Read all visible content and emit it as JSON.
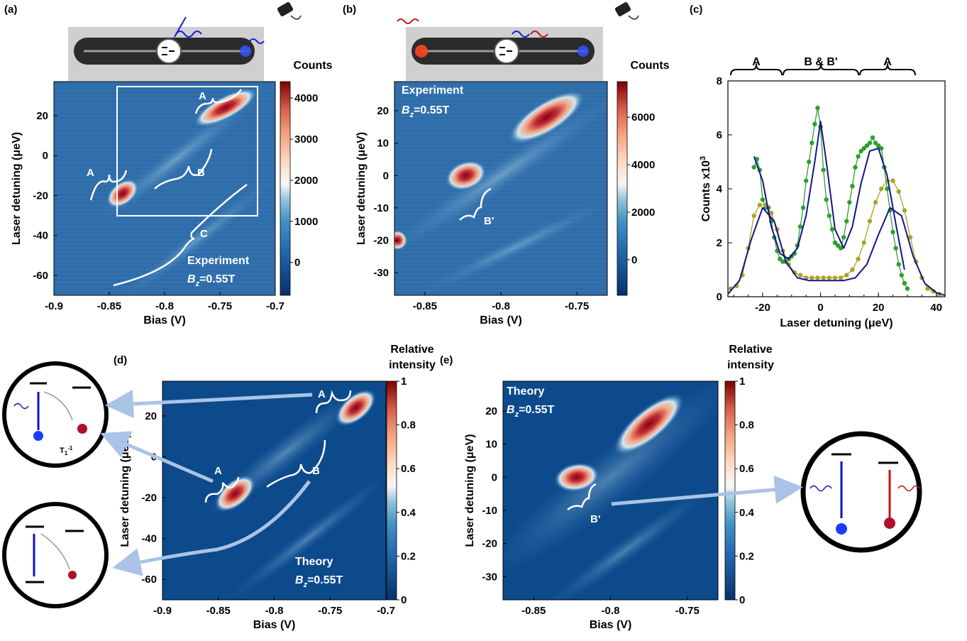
{
  "panels": {
    "a": "(a)",
    "b": "(b)",
    "c": "(c)",
    "d": "(d)",
    "e": "(e)"
  },
  "colors": {
    "dark_blue": "#08306b",
    "mid_blue": "#2c6fad",
    "light": "#f7f7f7",
    "peak_red": "#a50026",
    "fit_navy": "#14148c",
    "green": "#2ca02c",
    "olive": "#a8a428",
    "arrow": "#aac3e6"
  },
  "chart_data": [
    {
      "id": "a",
      "type": "heatmap",
      "xlabel": "Bias (V)",
      "ylabel": "Laser detuning (μeV)",
      "xlim": [
        -0.9,
        -0.7
      ],
      "ylim": [
        -70,
        37
      ],
      "x_ticks": [
        "-0.9",
        "-0.85",
        "-0.8",
        "-0.75",
        "-0.7"
      ],
      "y_ticks": [
        "20",
        "0",
        "-20",
        "-40",
        "-60"
      ],
      "colorbar": {
        "title": "Counts",
        "ticks": [
          "4000",
          "3000",
          "2000",
          "1000",
          "0"
        ],
        "range": [
          -800,
          4400
        ]
      },
      "features": [
        {
          "x": -0.838,
          "y": -19,
          "value": 3600
        },
        {
          "x": -0.745,
          "y": 24,
          "value": 4200
        },
        {
          "x": -0.79,
          "y": 3,
          "value": 1500
        },
        {
          "x": -0.77,
          "y": -40,
          "value": 1100
        }
      ],
      "labels": [
        "A",
        "A",
        "B",
        "C"
      ],
      "annotation": {
        "name": "Experiment",
        "field_sym": "B",
        "field_sub": "z",
        "field_val": "=0.55T"
      }
    },
    {
      "id": "b",
      "type": "heatmap",
      "xlabel": "Bias (V)",
      "ylabel": "Laser detuning (μeV)",
      "xlim": [
        -0.87,
        -0.73
      ],
      "ylim": [
        -37,
        29
      ],
      "x_ticks": [
        "-0.85",
        "-0.8",
        "-0.75"
      ],
      "y_ticks": [
        "20",
        "10",
        "0",
        "-10",
        "-20",
        "-30"
      ],
      "colorbar": {
        "title": "Counts",
        "ticks": [
          "6000",
          "4000",
          "2000",
          "0"
        ],
        "range": [
          -1500,
          7500
        ]
      },
      "features": [
        {
          "x": -0.823,
          "y": 0,
          "value": 6800
        },
        {
          "x": -0.77,
          "y": 18,
          "value": 5200
        },
        {
          "x": -0.79,
          "y": -22,
          "value": 1800
        }
      ],
      "labels": [
        "B'"
      ],
      "annotation": {
        "name": "Experiment",
        "field_sym": "B",
        "field_sub": "z",
        "field_val": "=0.55T"
      }
    },
    {
      "id": "c",
      "type": "line",
      "xlabel": "Laser detuning (μeV)",
      "ylabel": "Counts x10",
      "ylabel_sup": "3",
      "xlim": [
        -32,
        43
      ],
      "ylim": [
        0,
        8
      ],
      "x_ticks": [
        -20,
        0,
        20,
        40
      ],
      "y_ticks": [
        0,
        2,
        4,
        6,
        8
      ],
      "brackets": [
        "A",
        "B & B'",
        "A"
      ],
      "series": [
        {
          "values_x": [
            -23,
            -22,
            -21,
            -20,
            -19,
            -18,
            -17,
            -16,
            -15,
            -14,
            -13,
            -12,
            -11,
            -10,
            -9,
            -8,
            -7,
            -6,
            -5,
            -4,
            -3,
            -2,
            -1,
            0,
            1,
            2,
            3,
            4,
            5,
            6,
            7,
            8,
            9,
            10,
            11,
            12,
            13,
            14,
            15,
            16,
            17,
            18,
            19,
            20,
            21,
            22,
            23,
            24,
            25,
            26,
            27,
            28,
            29,
            30
          ],
          "values_y": [
            4.8,
            5.1,
            4.7,
            3.6,
            3.3,
            3.3,
            2.8,
            2.2,
            1.7,
            1.4,
            1.3,
            1.3,
            1.4,
            1.5,
            1.6,
            1.9,
            2.6,
            3.3,
            4.3,
            5.0,
            5.7,
            6.4,
            7.0,
            6.3,
            4.7,
            3.6,
            3.0,
            2.5,
            2.0,
            1.9,
            1.8,
            2.2,
            2.8,
            3.5,
            4.1,
            4.8,
            5.2,
            5.4,
            5.5,
            5.6,
            5.7,
            5.9,
            5.7,
            5.6,
            5.5,
            4.8,
            4.0,
            3.2,
            2.4,
            1.8,
            1.2,
            0.8,
            0.5,
            0.3
          ]
        },
        {
          "values_x": [
            -31,
            -29,
            -27,
            -25,
            -23,
            -21,
            -19,
            -17,
            -15,
            -13,
            -11,
            -9,
            -7,
            -5,
            -3,
            -1,
            1,
            3,
            5,
            7,
            9,
            11,
            13,
            15,
            17,
            19,
            21,
            23,
            25,
            27,
            29,
            31,
            33,
            35,
            37,
            39,
            41
          ],
          "values_y": [
            0.3,
            0.4,
            0.8,
            1.8,
            3.0,
            3.4,
            3.4,
            3.1,
            2.5,
            1.7,
            1.2,
            0.9,
            0.8,
            0.7,
            0.7,
            0.7,
            0.7,
            0.7,
            0.7,
            0.7,
            0.8,
            1.0,
            1.4,
            2.0,
            2.8,
            3.5,
            4.0,
            4.3,
            4.3,
            3.9,
            3.2,
            2.2,
            1.3,
            0.7,
            0.3,
            0.2,
            0.1
          ]
        },
        {
          "fit": "triple",
          "values_x": [
            -23,
            -20,
            -17,
            -14,
            -11,
            -8,
            -5,
            -2,
            0,
            2,
            5,
            8,
            11,
            14,
            17,
            20,
            23,
            26,
            29
          ],
          "values_y": [
            5.2,
            4.3,
            2.6,
            1.6,
            1.4,
            1.8,
            3.0,
            5.0,
            6.5,
            5.0,
            2.5,
            1.8,
            2.6,
            4.2,
            5.4,
            5.5,
            4.5,
            2.7,
            1.0
          ]
        },
        {
          "fit": "double",
          "values_x": [
            -32,
            -28,
            -24,
            -20,
            -16,
            -12,
            -8,
            -4,
            0,
            4,
            8,
            12,
            16,
            20,
            24,
            28,
            32,
            36,
            40,
            43
          ],
          "values_y": [
            0.1,
            0.6,
            2.1,
            3.3,
            2.8,
            1.3,
            0.7,
            0.6,
            0.6,
            0.6,
            0.6,
            0.7,
            1.2,
            2.3,
            3.3,
            3.0,
            1.5,
            0.5,
            0.15,
            0.05
          ]
        }
      ]
    },
    {
      "id": "d",
      "type": "heatmap",
      "xlabel": "Bias (V)",
      "ylabel": "Laser detuning (μeV)",
      "xlim": [
        -0.9,
        -0.7
      ],
      "ylim": [
        -70,
        37
      ],
      "x_ticks": [
        "-0.9",
        "-0.85",
        "-0.8",
        "-0.75",
        "-0.7"
      ],
      "y_ticks": [
        "20",
        "0",
        "-20",
        "-40",
        "-60"
      ],
      "colorbar": {
        "title_1": "Relative",
        "title_2": "intensity",
        "ticks": [
          "1",
          "0.8",
          "0.6",
          "0.4",
          "0.2",
          "0"
        ]
      },
      "labels": [
        "A",
        "A",
        "B"
      ],
      "annotation": {
        "name": "Theory",
        "field_sym": "B",
        "field_sub": "z",
        "field_val": "=0.55T"
      }
    },
    {
      "id": "e",
      "type": "heatmap",
      "xlabel": "Bias (V)",
      "ylabel": "Laser detuning (μeV)",
      "xlim": [
        -0.87,
        -0.73
      ],
      "ylim": [
        -37,
        29
      ],
      "x_ticks": [
        "-0.85",
        "-0.8",
        "-0.75"
      ],
      "y_ticks": [
        "20",
        "10",
        "0",
        "-10",
        "-20",
        "-30"
      ],
      "colorbar": {
        "title_1": "Relative",
        "title_2": "intensity",
        "ticks": [
          "1",
          "0.8",
          "0.6",
          "0.4",
          "0.2",
          "0"
        ]
      },
      "labels": [
        "B'"
      ],
      "annotation": {
        "name": "Theory",
        "field_sym": "B",
        "field_sub": "z",
        "field_val": "=0.55T"
      }
    }
  ],
  "insets": {
    "rate_label": "T",
    "rate_sub": "1",
    "rate_sup": "-1"
  }
}
